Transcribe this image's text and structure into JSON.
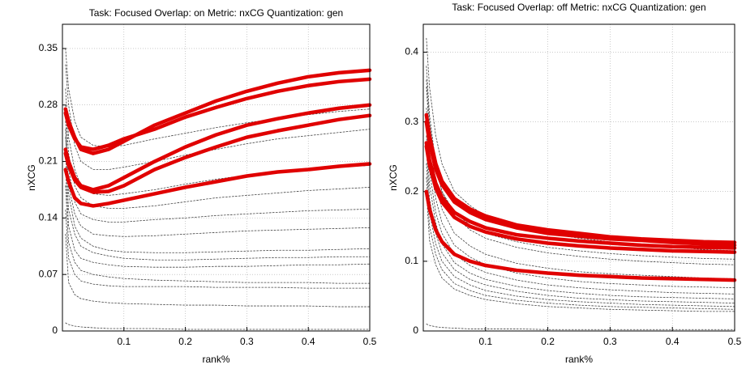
{
  "chart_data": [
    {
      "type": "line",
      "title": "Task: Focused Overlap: on Metric: nxCG Quantization: gen",
      "xlabel": "rank%",
      "ylabel": "nXCG",
      "x": [
        0.005,
        0.01,
        0.02,
        0.03,
        0.05,
        0.075,
        0.1,
        0.15,
        0.2,
        0.25,
        0.3,
        0.35,
        0.4,
        0.45,
        0.5
      ],
      "xlim": [
        0,
        0.5
      ],
      "ylim": [
        0,
        0.38
      ],
      "xticks": [
        0.1,
        0.2,
        0.3,
        0.4,
        0.5
      ],
      "yticks": [
        0,
        0.07,
        0.14,
        0.21,
        0.28,
        0.35
      ],
      "grid": true,
      "series": [
        {
          "color": "#444444",
          "linestyle": "dashed",
          "linewidth": 0.8,
          "values": [
            0.35,
            0.3,
            0.26,
            0.24,
            0.23,
            0.228,
            0.23,
            0.238,
            0.245,
            0.252,
            0.258,
            0.263,
            0.268,
            0.272,
            0.275
          ]
        },
        {
          "color": "#444444",
          "linestyle": "dashed",
          "linewidth": 0.8,
          "values": [
            0.33,
            0.28,
            0.23,
            0.21,
            0.2,
            0.2,
            0.203,
            0.21,
            0.218,
            0.225,
            0.232,
            0.238,
            0.242,
            0.246,
            0.25
          ]
        },
        {
          "color": "#444444",
          "linestyle": "dashed",
          "linewidth": 0.8,
          "values": [
            0.3,
            0.24,
            0.2,
            0.18,
            0.17,
            0.168,
            0.17,
            0.175,
            0.182,
            0.188,
            0.193,
            0.197,
            0.2,
            0.203,
            0.205
          ]
        },
        {
          "color": "#444444",
          "linestyle": "dashed",
          "linewidth": 0.8,
          "values": [
            0.28,
            0.22,
            0.18,
            0.165,
            0.155,
            0.152,
            0.152,
            0.155,
            0.16,
            0.165,
            0.168,
            0.171,
            0.174,
            0.176,
            0.178
          ]
        },
        {
          "color": "#444444",
          "linestyle": "dashed",
          "linewidth": 0.8,
          "values": [
            0.26,
            0.2,
            0.16,
            0.145,
            0.138,
            0.135,
            0.135,
            0.138,
            0.14,
            0.143,
            0.145,
            0.147,
            0.149,
            0.15,
            0.151
          ]
        },
        {
          "color": "#444444",
          "linestyle": "dashed",
          "linewidth": 0.8,
          "values": [
            0.25,
            0.18,
            0.145,
            0.13,
            0.12,
            0.118,
            0.117,
            0.118,
            0.12,
            0.122,
            0.124,
            0.125,
            0.126,
            0.127,
            0.128
          ]
        },
        {
          "color": "#444444",
          "linestyle": "dashed",
          "linewidth": 0.8,
          "values": [
            0.24,
            0.17,
            0.13,
            0.115,
            0.105,
            0.1,
            0.098,
            0.097,
            0.097,
            0.098,
            0.099,
            0.1,
            0.1,
            0.101,
            0.102
          ]
        },
        {
          "color": "#444444",
          "linestyle": "dashed",
          "linewidth": 0.8,
          "values": [
            0.22,
            0.15,
            0.12,
            0.105,
            0.097,
            0.093,
            0.09,
            0.088,
            0.088,
            0.089,
            0.09,
            0.091,
            0.091,
            0.092,
            0.092
          ]
        },
        {
          "color": "#444444",
          "linestyle": "dashed",
          "linewidth": 0.8,
          "values": [
            0.2,
            0.13,
            0.1,
            0.09,
            0.085,
            0.082,
            0.08,
            0.079,
            0.079,
            0.08,
            0.08,
            0.081,
            0.082,
            0.082,
            0.083
          ]
        },
        {
          "color": "#444444",
          "linestyle": "dashed",
          "linewidth": 0.8,
          "values": [
            0.18,
            0.11,
            0.085,
            0.075,
            0.07,
            0.067,
            0.065,
            0.063,
            0.062,
            0.061,
            0.06,
            0.06,
            0.06,
            0.059,
            0.059
          ]
        },
        {
          "color": "#444444",
          "linestyle": "dashed",
          "linewidth": 0.8,
          "values": [
            0.15,
            0.09,
            0.07,
            0.062,
            0.058,
            0.056,
            0.055,
            0.055,
            0.055,
            0.054,
            0.054,
            0.054,
            0.053,
            0.053,
            0.053
          ]
        },
        {
          "color": "#444444",
          "linestyle": "dashed",
          "linewidth": 0.8,
          "values": [
            0.12,
            0.06,
            0.045,
            0.04,
            0.037,
            0.035,
            0.034,
            0.033,
            0.032,
            0.032,
            0.031,
            0.031,
            0.031,
            0.03,
            0.03
          ]
        },
        {
          "color": "#444444",
          "linestyle": "dashed",
          "linewidth": 0.8,
          "values": [
            0.01,
            0.008,
            0.006,
            0.005,
            0.004,
            0.003,
            0.003,
            0.003,
            0.002,
            0.002,
            0.002,
            0.002,
            0.002,
            0.002,
            0.002
          ]
        },
        {
          "color": "#e00000",
          "linestyle": "solid",
          "linewidth": 4.5,
          "values": [
            0.275,
            0.26,
            0.24,
            0.225,
            0.22,
            0.225,
            0.235,
            0.255,
            0.27,
            0.285,
            0.297,
            0.307,
            0.315,
            0.32,
            0.323
          ]
        },
        {
          "color": "#e00000",
          "linestyle": "solid",
          "linewidth": 4.5,
          "values": [
            0.27,
            0.255,
            0.238,
            0.228,
            0.225,
            0.23,
            0.238,
            0.25,
            0.265,
            0.277,
            0.288,
            0.297,
            0.304,
            0.309,
            0.312
          ]
        },
        {
          "color": "#e00000",
          "linestyle": "solid",
          "linewidth": 4.5,
          "values": [
            0.225,
            0.21,
            0.19,
            0.18,
            0.175,
            0.18,
            0.19,
            0.21,
            0.228,
            0.243,
            0.255,
            0.263,
            0.27,
            0.276,
            0.28
          ]
        },
        {
          "color": "#e00000",
          "linestyle": "solid",
          "linewidth": 4.5,
          "values": [
            0.22,
            0.205,
            0.187,
            0.178,
            0.172,
            0.173,
            0.18,
            0.2,
            0.215,
            0.228,
            0.24,
            0.248,
            0.255,
            0.262,
            0.267
          ]
        },
        {
          "color": "#e00000",
          "linestyle": "solid",
          "linewidth": 4.5,
          "values": [
            0.2,
            0.185,
            0.165,
            0.158,
            0.155,
            0.158,
            0.162,
            0.17,
            0.178,
            0.185,
            0.192,
            0.197,
            0.2,
            0.204,
            0.207
          ]
        }
      ]
    },
    {
      "type": "line",
      "title": "Task: Focused Overlap: off Metric: nxCG Quantization: gen",
      "xlabel": "rank%",
      "ylabel": "nXCG",
      "x": [
        0.005,
        0.01,
        0.02,
        0.03,
        0.05,
        0.075,
        0.1,
        0.15,
        0.2,
        0.25,
        0.3,
        0.35,
        0.4,
        0.45,
        0.5
      ],
      "xlim": [
        0,
        0.5
      ],
      "ylim": [
        0,
        0.44
      ],
      "xticks": [
        0.1,
        0.2,
        0.3,
        0.4,
        0.5
      ],
      "yticks": [
        0,
        0.1,
        0.2,
        0.3,
        0.4
      ],
      "grid": true,
      "series": [
        {
          "color": "#444444",
          "linestyle": "dashed",
          "linewidth": 0.8,
          "values": [
            0.42,
            0.35,
            0.28,
            0.24,
            0.2,
            0.18,
            0.165,
            0.15,
            0.14,
            0.133,
            0.128,
            0.124,
            0.12,
            0.117,
            0.115
          ]
        },
        {
          "color": "#444444",
          "linestyle": "dashed",
          "linewidth": 0.8,
          "values": [
            0.38,
            0.31,
            0.24,
            0.2,
            0.165,
            0.145,
            0.133,
            0.12,
            0.112,
            0.107,
            0.103,
            0.1,
            0.098,
            0.096,
            0.095
          ]
        },
        {
          "color": "#444444",
          "linestyle": "dashed",
          "linewidth": 0.8,
          "values": [
            0.36,
            0.3,
            0.235,
            0.2,
            0.17,
            0.152,
            0.14,
            0.128,
            0.12,
            0.115,
            0.111,
            0.108,
            0.106,
            0.104,
            0.103
          ]
        },
        {
          "color": "#444444",
          "linestyle": "dashed",
          "linewidth": 0.8,
          "values": [
            0.35,
            0.28,
            0.21,
            0.175,
            0.14,
            0.122,
            0.11,
            0.097,
            0.09,
            0.085,
            0.082,
            0.08,
            0.078,
            0.076,
            0.075
          ]
        },
        {
          "color": "#444444",
          "linestyle": "dashed",
          "linewidth": 0.8,
          "values": [
            0.32,
            0.25,
            0.19,
            0.155,
            0.123,
            0.106,
            0.095,
            0.083,
            0.076,
            0.071,
            0.068,
            0.066,
            0.064,
            0.063,
            0.062
          ]
        },
        {
          "color": "#444444",
          "linestyle": "dashed",
          "linewidth": 0.8,
          "values": [
            0.3,
            0.23,
            0.17,
            0.14,
            0.11,
            0.094,
            0.084,
            0.073,
            0.066,
            0.062,
            0.059,
            0.057,
            0.055,
            0.054,
            0.053
          ]
        },
        {
          "color": "#444444",
          "linestyle": "dashed",
          "linewidth": 0.8,
          "values": [
            0.28,
            0.21,
            0.155,
            0.125,
            0.098,
            0.083,
            0.074,
            0.064,
            0.058,
            0.054,
            0.051,
            0.049,
            0.048,
            0.047,
            0.046
          ]
        },
        {
          "color": "#444444",
          "linestyle": "dashed",
          "linewidth": 0.8,
          "values": [
            0.26,
            0.19,
            0.14,
            0.112,
            0.088,
            0.074,
            0.066,
            0.057,
            0.051,
            0.047,
            0.045,
            0.043,
            0.042,
            0.041,
            0.04
          ]
        },
        {
          "color": "#444444",
          "linestyle": "dashed",
          "linewidth": 0.8,
          "values": [
            0.24,
            0.17,
            0.125,
            0.1,
            0.078,
            0.066,
            0.058,
            0.05,
            0.045,
            0.042,
            0.04,
            0.038,
            0.037,
            0.036,
            0.035
          ]
        },
        {
          "color": "#444444",
          "linestyle": "dashed",
          "linewidth": 0.8,
          "values": [
            0.22,
            0.15,
            0.11,
            0.088,
            0.068,
            0.058,
            0.051,
            0.044,
            0.04,
            0.037,
            0.035,
            0.034,
            0.033,
            0.032,
            0.031
          ]
        },
        {
          "color": "#444444",
          "linestyle": "dashed",
          "linewidth": 0.8,
          "values": [
            0.2,
            0.13,
            0.095,
            0.076,
            0.06,
            0.051,
            0.045,
            0.039,
            0.035,
            0.033,
            0.031,
            0.03,
            0.029,
            0.028,
            0.028
          ]
        },
        {
          "color": "#444444",
          "linestyle": "dashed",
          "linewidth": 0.8,
          "values": [
            0.01,
            0.008,
            0.006,
            0.005,
            0.004,
            0.003,
            0.003,
            0.003,
            0.002,
            0.002,
            0.002,
            0.002,
            0.002,
            0.002,
            0.002
          ]
        },
        {
          "color": "#e00000",
          "linestyle": "solid",
          "linewidth": 4.5,
          "values": [
            0.31,
            0.28,
            0.24,
            0.215,
            0.19,
            0.175,
            0.165,
            0.152,
            0.145,
            0.14,
            0.135,
            0.132,
            0.13,
            0.128,
            0.127
          ]
        },
        {
          "color": "#e00000",
          "linestyle": "solid",
          "linewidth": 4.5,
          "values": [
            0.3,
            0.27,
            0.232,
            0.21,
            0.185,
            0.17,
            0.16,
            0.148,
            0.14,
            0.136,
            0.132,
            0.13,
            0.127,
            0.125,
            0.123
          ]
        },
        {
          "color": "#e00000",
          "linestyle": "solid",
          "linewidth": 4.5,
          "values": [
            0.27,
            0.245,
            0.212,
            0.192,
            0.17,
            0.157,
            0.148,
            0.138,
            0.133,
            0.129,
            0.126,
            0.123,
            0.121,
            0.12,
            0.119
          ]
        },
        {
          "color": "#e00000",
          "linestyle": "solid",
          "linewidth": 4.5,
          "values": [
            0.265,
            0.238,
            0.205,
            0.185,
            0.163,
            0.15,
            0.142,
            0.132,
            0.126,
            0.122,
            0.119,
            0.117,
            0.115,
            0.114,
            0.113
          ]
        },
        {
          "color": "#e00000",
          "linestyle": "solid",
          "linewidth": 4.5,
          "values": [
            0.2,
            0.175,
            0.145,
            0.128,
            0.11,
            0.1,
            0.094,
            0.087,
            0.083,
            0.08,
            0.078,
            0.076,
            0.075,
            0.074,
            0.073
          ]
        }
      ]
    }
  ]
}
